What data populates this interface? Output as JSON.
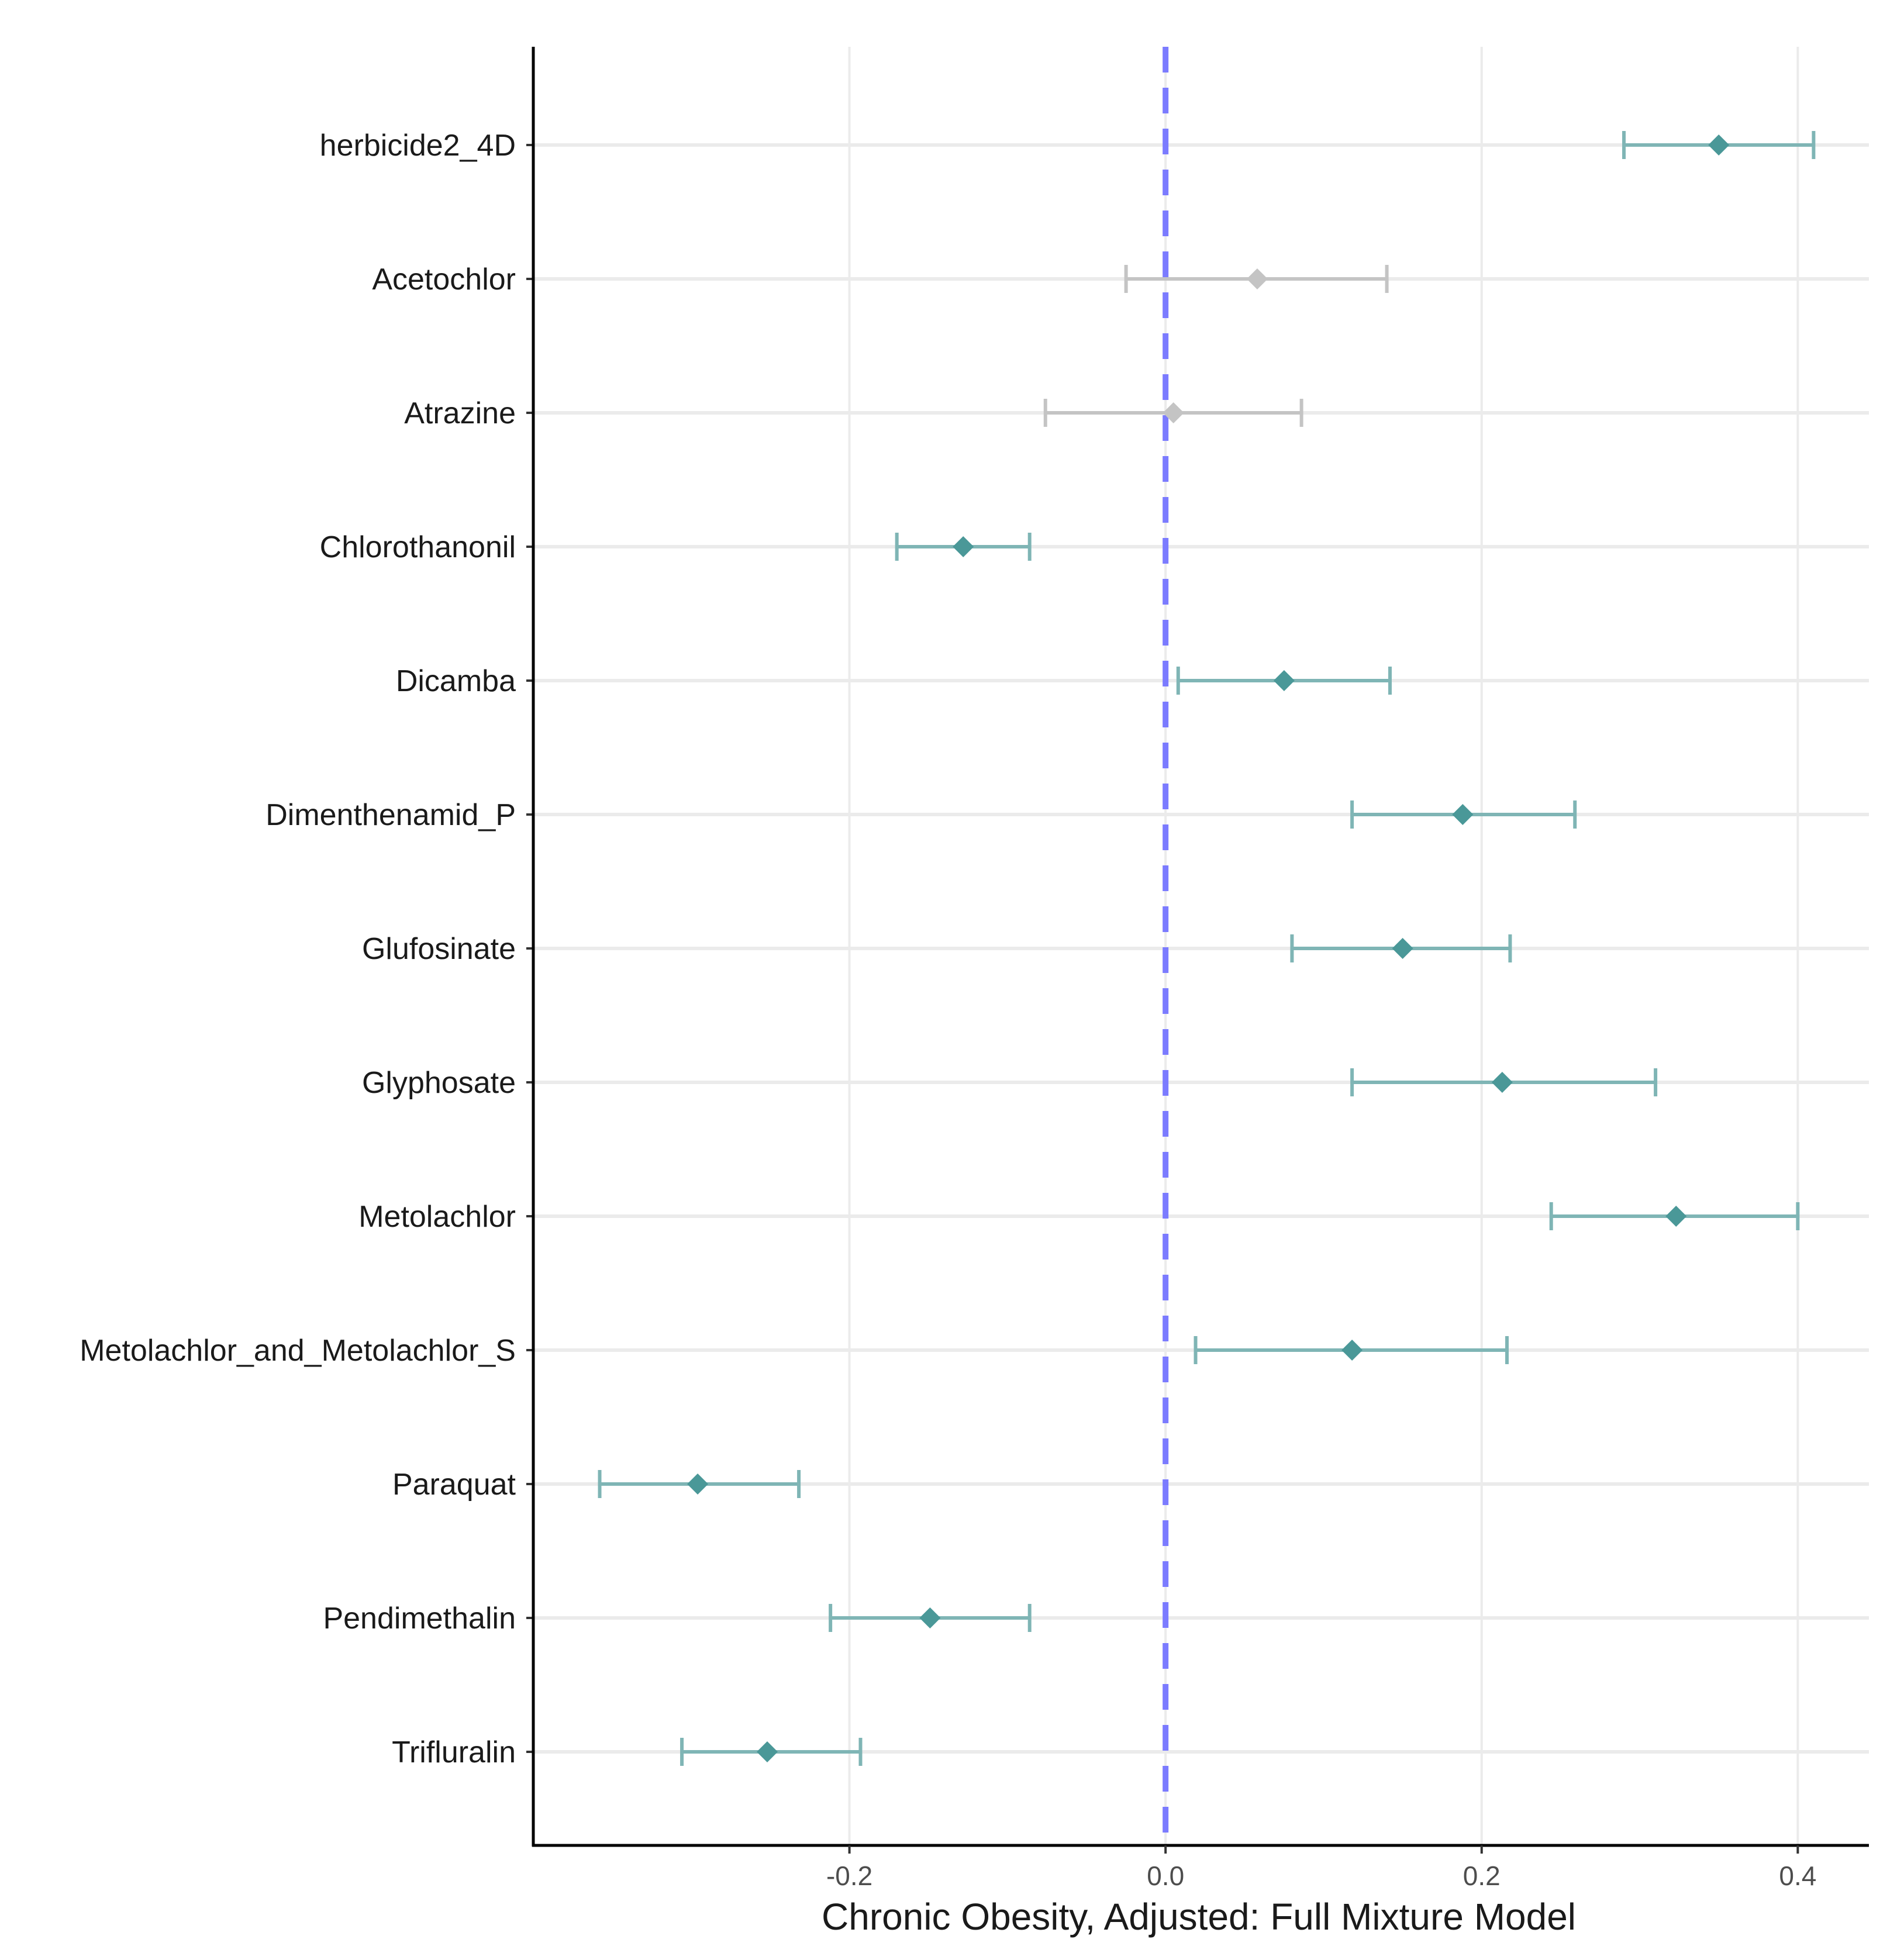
{
  "chart_data": {
    "type": "forest",
    "title": "",
    "xlabel": "Chronic Obesity, Adjusted: Full Mixture Model",
    "ylabel": "",
    "xlim": [
      -0.4,
      0.445
    ],
    "xticks": [
      -0.2,
      0.0,
      0.2,
      0.4
    ],
    "xtick_labels": [
      "-0.2",
      "0.0",
      "0.2",
      "0.4"
    ],
    "reference_line": 0.0,
    "grid": true,
    "colors": {
      "significant": "#4a9898",
      "significant_ci": "#7fb5b5",
      "nonsignificant": "#c4c4c4",
      "reference": "#7b7bff",
      "axis": "#000000",
      "grid": "#ebebeb"
    },
    "rows": [
      {
        "label": "herbicide2_4D",
        "estimate": 0.35,
        "lower": 0.29,
        "upper": 0.41,
        "significant": true
      },
      {
        "label": "Acetochlor",
        "estimate": 0.058,
        "lower": -0.025,
        "upper": 0.14,
        "significant": false
      },
      {
        "label": "Atrazine",
        "estimate": 0.005,
        "lower": -0.076,
        "upper": 0.086,
        "significant": false
      },
      {
        "label": "Chlorothanonil",
        "estimate": -0.128,
        "lower": -0.17,
        "upper": -0.086,
        "significant": true
      },
      {
        "label": "Dicamba",
        "estimate": 0.075,
        "lower": 0.008,
        "upper": 0.142,
        "significant": true
      },
      {
        "label": "Dimenthenamid_P",
        "estimate": 0.188,
        "lower": 0.118,
        "upper": 0.259,
        "significant": true
      },
      {
        "label": "Glufosinate",
        "estimate": 0.15,
        "lower": 0.08,
        "upper": 0.218,
        "significant": true
      },
      {
        "label": "Glyphosate",
        "estimate": 0.213,
        "lower": 0.118,
        "upper": 0.31,
        "significant": true
      },
      {
        "label": "Metolachlor",
        "estimate": 0.323,
        "lower": 0.244,
        "upper": 0.4,
        "significant": true
      },
      {
        "label": "Metolachlor_and_Metolachlor_S",
        "estimate": 0.118,
        "lower": 0.019,
        "upper": 0.216,
        "significant": true
      },
      {
        "label": "Paraquat",
        "estimate": -0.296,
        "lower": -0.358,
        "upper": -0.232,
        "significant": true
      },
      {
        "label": "Pendimethalin",
        "estimate": -0.149,
        "lower": -0.212,
        "upper": -0.086,
        "significant": true
      },
      {
        "label": "Trifluralin",
        "estimate": -0.252,
        "lower": -0.306,
        "upper": -0.193,
        "significant": true
      }
    ]
  }
}
